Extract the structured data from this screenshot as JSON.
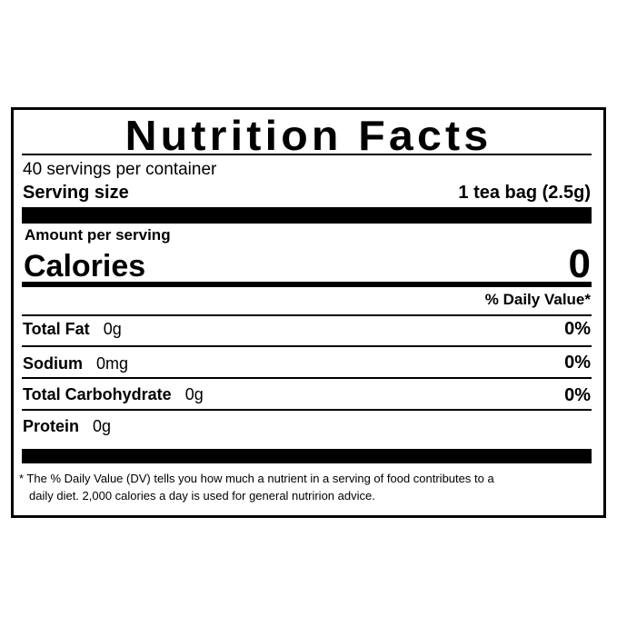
{
  "title": "Nutrition Facts",
  "servings_per_container": "40 servings per container",
  "serving_size": {
    "label": "Serving size",
    "value": "1 tea bag (2.5g)"
  },
  "amount_per_serving": "Amount per serving",
  "calories": {
    "label": "Calories",
    "value": "0"
  },
  "daily_value_header": "% Daily Value*",
  "nutrients": [
    {
      "name": "Total Fat",
      "amount": "0g",
      "dv": "0%"
    },
    {
      "name": "Sodium",
      "amount": "0mg",
      "dv": "0%"
    },
    {
      "name": "Total Carbohydrate",
      "amount": "0g",
      "dv": "0%"
    },
    {
      "name": "Protein",
      "amount": "0g",
      "dv": ""
    }
  ],
  "footnote": {
    "line1": "* The % Daily Value (DV) tells you how much a nutrient in a serving of food contributes to a",
    "line2": "daily diet. 2,000 calories a day is used for general nutririon advice."
  }
}
